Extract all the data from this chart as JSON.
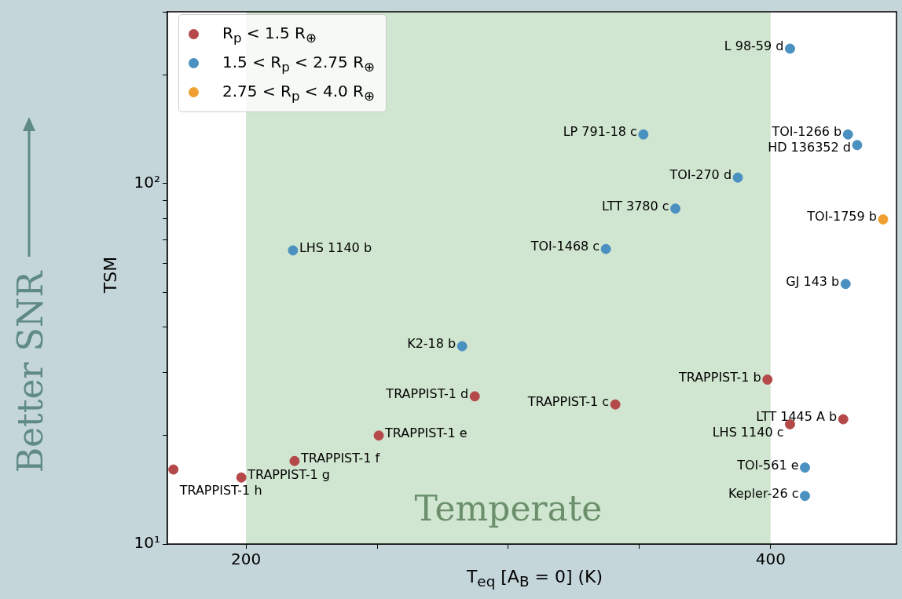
{
  "chart_data": {
    "type": "scatter",
    "xlabel": "T$_{eq}$ [A$_{B}$ = 0] (K)",
    "ylabel": "TSM",
    "annotations": [
      "Better SNR"
    ],
    "xlim": [
      170,
      448
    ],
    "ylim": [
      10,
      300
    ],
    "xticks": [
      200,
      {
        "value": 250,
        "label": null
      },
      {
        "value": 300,
        "label": null
      },
      {
        "value": 350,
        "label": null
      },
      400
    ],
    "yticks": [
      {
        "value": 10,
        "label": "10¹"
      },
      {
        "value": 20,
        "label": null
      },
      {
        "value": 30,
        "label": null
      },
      {
        "value": 40,
        "label": null
      },
      {
        "value": 50,
        "label": null
      },
      {
        "value": 60,
        "label": null
      },
      {
        "value": 70,
        "label": null
      },
      {
        "value": 80,
        "label": null
      },
      {
        "value": 90,
        "label": null
      },
      {
        "value": 100,
        "label": "10²"
      },
      {
        "value": 200,
        "label": null
      },
      {
        "value": 300,
        "label": null
      }
    ],
    "log": true,
    "grid": false,
    "legend": "top left",
    "marker": "circle",
    "bands": [
      {
        "axis": "x",
        "from": 200,
        "to": 400,
        "label": "Temperate",
        "color": "#d0e6d0"
      }
    ],
    "series": [
      {
        "name": "R$_{p}$ < 1.5 R$_{⊕}$",
        "color": "#b5494a",
        "x": [
          398.8,
          340.8,
          287.2,
          250.6,
          218.5,
          198.2,
          172.3,
          427.7,
          407.4
        ],
        "values": [
          28.6,
          24.4,
          25.7,
          20.0,
          17.0,
          15.3,
          16.1,
          22.2,
          21.5
        ],
        "value_labels": [
          "TRAPPIST-1 b",
          "TRAPPIST-1 c",
          "TRAPPIST-1 d",
          "TRAPPIST-1 e",
          "TRAPPIST-1 f",
          "TRAPPIST-1 g",
          "TRAPPIST-1 h",
          "LTT 1445 A b",
          "LHS 1140 c"
        ]
      },
      {
        "name": "1.5 < R$_{p}$ < 2.75 R$_{⊕}$",
        "color": "#4a90c0",
        "x": [
          407.4,
          351.5,
          429.5,
          433,
          387.5,
          363.7,
          217.9,
          337.2,
          428.6,
          282.4,
          413.1,
          413.1
        ],
        "values": [
          237,
          137,
          137,
          128,
          104,
          85.3,
          65.3,
          65.9,
          52.7,
          35.4,
          16.3,
          13.6
        ],
        "value_labels": [
          "L 98-59 d",
          "LP 791-18 c",
          "TOI-1266 b",
          "HD 136352 d",
          "TOI-270 d",
          "LTT 3780 c",
          "LHS 1140 b",
          "TOI-1468 c",
          "GJ 143 b",
          "K2-18 b",
          "TOI-561 e",
          "Kepler-26 c"
        ]
      },
      {
        "name": "2.75 < R$_{p}$ < 4.0 R$_{⊕}$",
        "color": "#f0a030",
        "x": [
          442.9
        ],
        "values": [
          79.6
        ],
        "value_labels": [
          "TOI-1759 b"
        ]
      }
    ]
  }
}
